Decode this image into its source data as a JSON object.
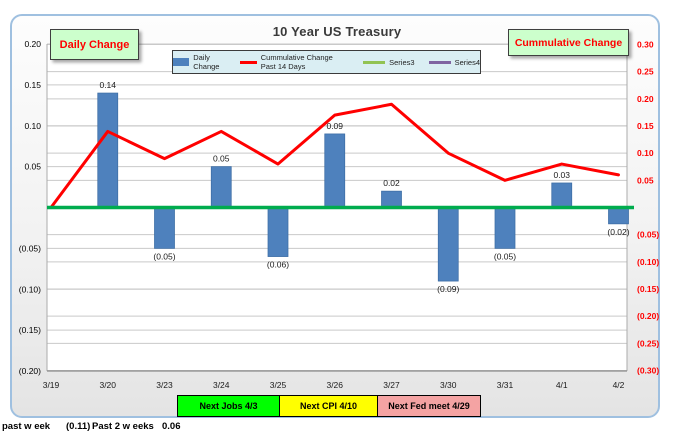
{
  "header": {
    "title": "10 Year US Treasury"
  },
  "callouts": {
    "left": "Daily Change",
    "right": "Cummulative Change"
  },
  "chart_data": {
    "type": "bar",
    "subtype": "bar-line-combo",
    "title": "10 Year US Treasury",
    "categories": [
      "3/19",
      "3/20",
      "3/23",
      "3/24",
      "3/25",
      "3/26",
      "3/27",
      "3/30",
      "3/31",
      "4/1",
      "4/2"
    ],
    "series": [
      {
        "name": "Daily Change",
        "chart_type": "bar",
        "axis": "left",
        "color": "#4e81bd",
        "values": [
          0,
          0.14,
          -0.05,
          0.05,
          -0.06,
          0.09,
          0.02,
          -0.09,
          -0.05,
          0.03,
          -0.02
        ],
        "labels": [
          "",
          "0.14",
          "(0.05)",
          "0.05",
          "(0.06)",
          "0.09",
          "0.02",
          "(0.09)",
          "(0.05)",
          "0.03",
          "(0.02)"
        ]
      },
      {
        "name": "Cummulative Change Past 14 Days",
        "chart_type": "line",
        "axis": "right",
        "color": "#ff0000",
        "values": [
          0.0,
          0.14,
          0.09,
          0.14,
          0.08,
          0.17,
          0.19,
          0.1,
          0.05,
          0.08,
          0.06
        ]
      },
      {
        "name": "Series3",
        "chart_type": "line",
        "axis": "right",
        "color": "#00ac4e",
        "legend_color": "#92c353",
        "values": [
          0,
          0,
          0,
          0,
          0,
          0,
          0,
          0,
          0,
          0,
          0
        ]
      },
      {
        "name": "Series4",
        "chart_type": "line",
        "axis": "right",
        "color": "#8064a2",
        "values": []
      }
    ],
    "left_axis": {
      "ylim": [
        -0.2,
        0.2
      ],
      "label_color": "#000000",
      "ticks": [
        {
          "v": 0.2,
          "label": "0.20"
        },
        {
          "v": 0.15,
          "label": "0.15"
        },
        {
          "v": 0.1,
          "label": "0.10"
        },
        {
          "v": 0.05,
          "label": "0.05"
        },
        {
          "v": -0.05,
          "label": "(0.05)"
        },
        {
          "v": -0.1,
          "label": "(0.10)"
        },
        {
          "v": -0.15,
          "label": "(0.15)"
        },
        {
          "v": -0.2,
          "label": "(0.20)"
        }
      ]
    },
    "right_axis": {
      "ylim": [
        -0.3,
        0.3
      ],
      "label_color": "#ff0000",
      "ticks": [
        {
          "v": 0.3,
          "label": "0.30"
        },
        {
          "v": 0.25,
          "label": "0.25"
        },
        {
          "v": 0.2,
          "label": "0.20"
        },
        {
          "v": 0.15,
          "label": "0.15"
        },
        {
          "v": 0.1,
          "label": "0.10"
        },
        {
          "v": 0.05,
          "label": "0.05"
        },
        {
          "v": -0.05,
          "label": "(0.05)"
        },
        {
          "v": -0.1,
          "label": "(0.10)"
        },
        {
          "v": -0.15,
          "label": "(0.15)"
        },
        {
          "v": -0.2,
          "label": "(0.20)"
        },
        {
          "v": -0.25,
          "label": "(0.25)"
        },
        {
          "v": -0.3,
          "label": "(0.30)"
        }
      ]
    },
    "grid": true,
    "legend_position": "top"
  },
  "events": [
    {
      "label": "Next Jobs 4/3",
      "fill": "#00ff00"
    },
    {
      "label": "Next CPI 4/10",
      "fill": "#ffff00"
    },
    {
      "label": "Next Fed meet 4/29",
      "fill": "#f4a3a3"
    }
  ],
  "footer": {
    "past_week_label": "past w eek",
    "past_week_value": "(0.11)",
    "past_2_weeks_label": "Past 2 w eeks",
    "past_2_weeks_value": "0.06"
  }
}
